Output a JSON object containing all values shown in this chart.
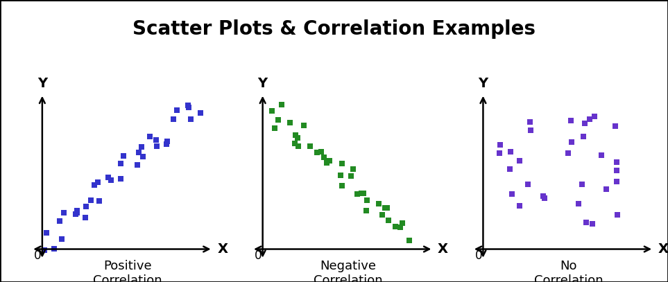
{
  "title": "Scatter Plots & Correlation Examples",
  "title_fontsize": 20,
  "title_fontweight": "bold",
  "background_color": "#ffffff",
  "border_color": "#000000",
  "subplots": [
    {
      "label": "Positive\nCorrelation",
      "color": "#3333cc",
      "marker": "s",
      "marker_size": 6
    },
    {
      "label": "Negative\nCorrelation",
      "color": "#228B22",
      "marker": "s",
      "marker_size": 6
    },
    {
      "label": "No\nCorrelation",
      "color": "#6633cc",
      "marker": "s",
      "marker_size": 6
    }
  ],
  "axis_label_fontsize": 14,
  "corr_label_fontsize": 13,
  "zero_label_fontsize": 12
}
